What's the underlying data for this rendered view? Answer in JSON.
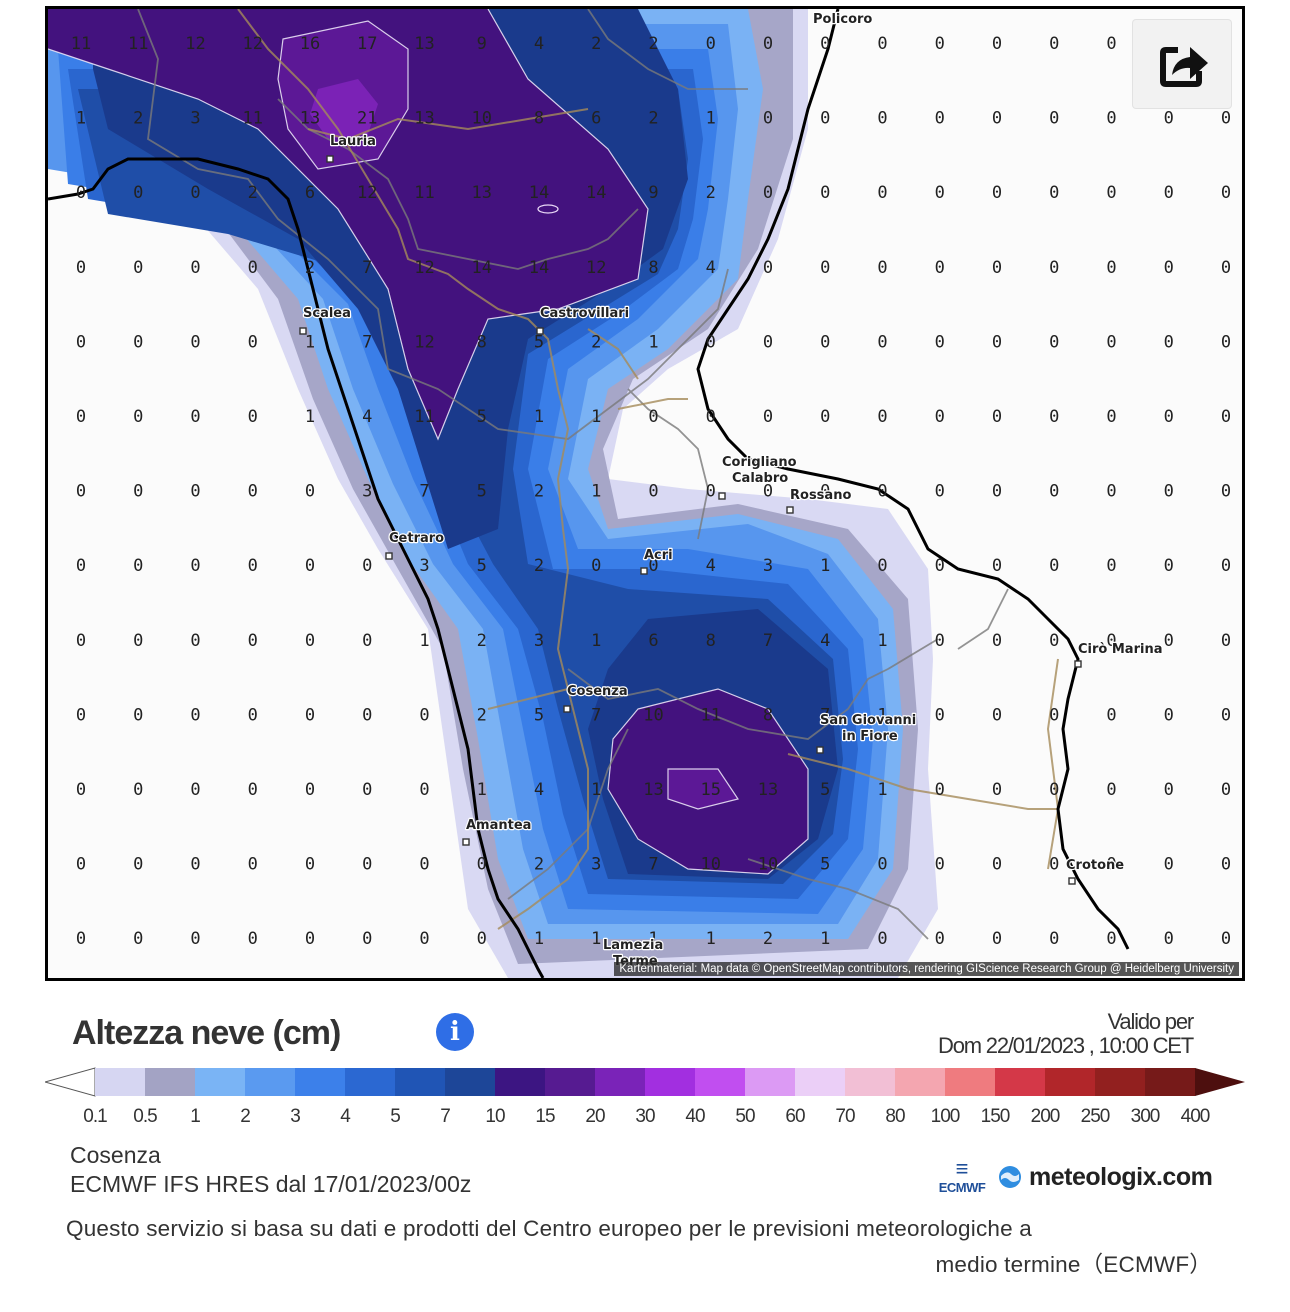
{
  "map": {
    "attribution": "Kartenmaterial: Map data © OpenStreetMap contributors, rendering GIScience Research Group @ Heidelberg University",
    "grid": {
      "columns": 21,
      "rows": 13,
      "values": [
        [
          "11",
          "11",
          "12",
          "12",
          "16",
          "17",
          "13",
          "9",
          "4",
          "2",
          "2",
          "0",
          "0",
          "0",
          "0",
          "0",
          "0",
          "0",
          "0",
          "",
          ""
        ],
        [
          "1",
          "2",
          "3",
          "11",
          "13",
          "21",
          "13",
          "10",
          "8",
          "6",
          "2",
          "1",
          "0",
          "0",
          "0",
          "0",
          "0",
          "0",
          "0",
          "0",
          "0"
        ],
        [
          "0",
          "0",
          "0",
          "2",
          "6",
          "12",
          "11",
          "13",
          "14",
          "14",
          "9",
          "2",
          "0",
          "0",
          "0",
          "0",
          "0",
          "0",
          "0",
          "0",
          "0"
        ],
        [
          "0",
          "0",
          "0",
          "0",
          "2",
          "7",
          "12",
          "14",
          "14",
          "12",
          "8",
          "4",
          "0",
          "0",
          "0",
          "0",
          "0",
          "0",
          "0",
          "0",
          "0"
        ],
        [
          "0",
          "0",
          "0",
          "0",
          "1",
          "7",
          "12",
          "8",
          "5",
          "2",
          "1",
          "0",
          "0",
          "0",
          "0",
          "0",
          "0",
          "0",
          "0",
          "0",
          "0"
        ],
        [
          "0",
          "0",
          "0",
          "0",
          "1",
          "4",
          "11",
          "5",
          "1",
          "1",
          "0",
          "0",
          "0",
          "0",
          "0",
          "0",
          "0",
          "0",
          "0",
          "0",
          "0"
        ],
        [
          "0",
          "0",
          "0",
          "0",
          "0",
          "3",
          "7",
          "5",
          "2",
          "1",
          "0",
          "0",
          "0",
          "0",
          "0",
          "0",
          "0",
          "0",
          "0",
          "0",
          "0"
        ],
        [
          "0",
          "0",
          "0",
          "0",
          "0",
          "0",
          "3",
          "5",
          "2",
          "0",
          "0",
          "4",
          "3",
          "1",
          "0",
          "0",
          "0",
          "0",
          "0",
          "0",
          "0"
        ],
        [
          "0",
          "0",
          "0",
          "0",
          "0",
          "0",
          "1",
          "2",
          "3",
          "1",
          "6",
          "8",
          "7",
          "4",
          "1",
          "0",
          "0",
          "0",
          "0",
          "0",
          "0"
        ],
        [
          "0",
          "0",
          "0",
          "0",
          "0",
          "0",
          "0",
          "2",
          "5",
          "7",
          "10",
          "11",
          "8",
          "7",
          "1",
          "0",
          "0",
          "0",
          "0",
          "0",
          "0"
        ],
        [
          "0",
          "0",
          "0",
          "0",
          "0",
          "0",
          "0",
          "1",
          "4",
          "1",
          "13",
          "15",
          "13",
          "5",
          "1",
          "0",
          "0",
          "0",
          "0",
          "0",
          "0"
        ],
        [
          "0",
          "0",
          "0",
          "0",
          "0",
          "0",
          "0",
          "0",
          "2",
          "3",
          "7",
          "10",
          "10",
          "5",
          "0",
          "0",
          "0",
          "0",
          "0",
          "0",
          "0"
        ],
        [
          "0",
          "0",
          "0",
          "0",
          "0",
          "0",
          "0",
          "0",
          "1",
          "1",
          "1",
          "1",
          "2",
          "1",
          "0",
          "0",
          "0",
          "0",
          "0",
          "0",
          "0"
        ]
      ]
    },
    "cities": [
      {
        "name": "Policoro"
      },
      {
        "name": "Lauria"
      },
      {
        "name": "Scalea"
      },
      {
        "name": "Castrovillari"
      },
      {
        "name": "Corigliano Calabro"
      },
      {
        "name": "Rossano"
      },
      {
        "name": "Cetraro"
      },
      {
        "name": "Acri"
      },
      {
        "name": "Cosenza"
      },
      {
        "name": "San Giovanni in Fiore"
      },
      {
        "name": "Cirò Marina"
      },
      {
        "name": "Amantea"
      },
      {
        "name": "Crotone"
      },
      {
        "name": "Lamezia Terme"
      }
    ],
    "colors": {
      "c01": "#d9d9f3",
      "c05": "#a6a6c8",
      "c1": "#7ab2f4",
      "c2": "#5796ee",
      "c3": "#3a7ee8",
      "c4": "#2a66cf",
      "c5": "#1f4ea8",
      "c7": "#1a3a8c",
      "c10": "#43127e",
      "c15": "#5c1896",
      "c20": "#7b22b6"
    }
  },
  "share": {
    "icon": "share-icon"
  },
  "header": {
    "title": "Altezza neve (cm)",
    "info_icon": "info-icon",
    "info_glyph": "i",
    "valid_label": "Valido per",
    "valid_date": "Dom 22/01/2023 , 10:00 CET"
  },
  "legend": {
    "ticks": [
      "0.1",
      "0.5",
      "1",
      "2",
      "3",
      "4",
      "5",
      "7",
      "10",
      "15",
      "20",
      "30",
      "40",
      "50",
      "60",
      "70",
      "80",
      "100",
      "150",
      "200",
      "250",
      "300",
      "400"
    ],
    "colors": [
      "#d6d6f2",
      "#a3a3c4",
      "#7ab4f5",
      "#5a9af0",
      "#3c80ea",
      "#2b68d2",
      "#2055b5",
      "#1d4698",
      "#3c1582",
      "#561b91",
      "#7a23b8",
      "#a22fe0",
      "#c14ef0",
      "#dc9af4",
      "#ebcff7",
      "#f2bfd5",
      "#f4a6b0",
      "#ef7b7f",
      "#d43848",
      "#b1262a",
      "#92201f",
      "#761a19"
    ]
  },
  "footer": {
    "place": "Cosenza",
    "model": "ECMWF IFS HRES dal 17/01/2023/00z",
    "disclaimer_line1": "Questo servizio si basa su dati e prodotti del Centro europeo per le previsioni meteorologiche a",
    "disclaimer_line2": "medio termine（ECMWF）",
    "ecmwf_logo": "ECMWF",
    "meteologix_logo": "meteologix.com"
  }
}
